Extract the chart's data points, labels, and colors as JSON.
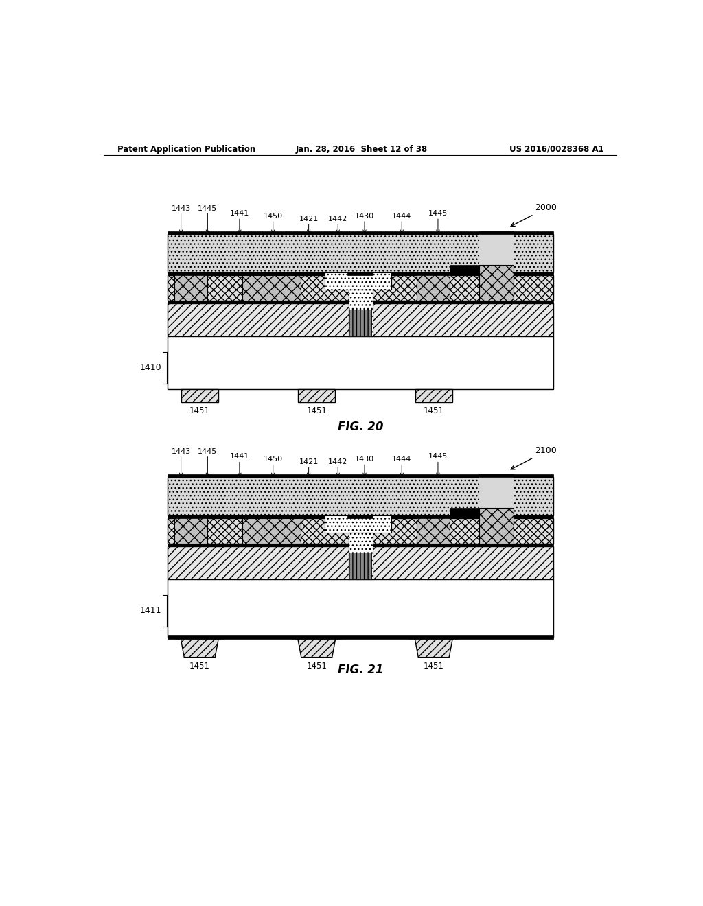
{
  "header_left": "Patent Application Publication",
  "header_mid": "Jan. 28, 2016  Sheet 12 of 38",
  "header_right": "US 2016/0028368 A1",
  "fig20_label": "FIG. 20",
  "fig21_label": "FIG. 21",
  "ref_2000": "2000",
  "ref_2100": "2100",
  "ref_1410": "1410",
  "ref_1411": "1411",
  "label_1451": "1451",
  "bg_color": "#ffffff",
  "line_color": "#000000",
  "labels_fig20": [
    "1443",
    "1445",
    "1441",
    "1450",
    "1421",
    "1442",
    "1430",
    "1444",
    "1445"
  ],
  "labels_fig21": [
    "1443",
    "1445",
    "1441",
    "1450",
    "1421",
    "1442",
    "1430",
    "1444",
    "1445"
  ]
}
